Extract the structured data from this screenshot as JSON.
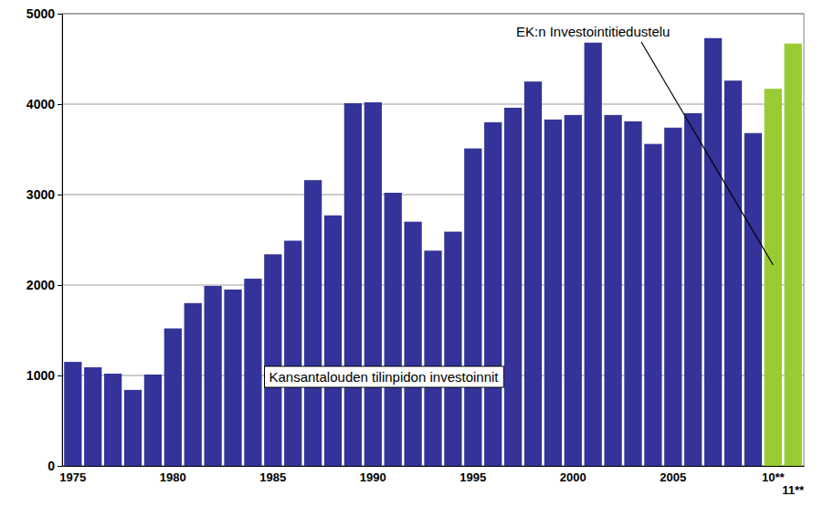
{
  "chart_data": {
    "type": "bar",
    "categories": [
      "1975",
      null,
      null,
      null,
      null,
      "1980",
      null,
      null,
      null,
      null,
      "1985",
      null,
      null,
      null,
      null,
      "1990",
      null,
      null,
      null,
      null,
      "1995",
      null,
      null,
      null,
      null,
      "2000",
      null,
      null,
      null,
      null,
      "2005",
      null,
      null,
      null,
      null,
      "10**",
      "11**"
    ],
    "values": [
      1150,
      1090,
      1020,
      840,
      1010,
      1520,
      1800,
      1990,
      1950,
      2070,
      2340,
      2490,
      3160,
      2770,
      4010,
      4020,
      3020,
      2700,
      2380,
      2590,
      3510,
      3800,
      3960,
      4250,
      3830,
      3880,
      4680,
      3880,
      3810,
      3560,
      3740,
      3900,
      4730,
      4260,
      3680,
      4170,
      4670
    ],
    "colors": [
      "#333399",
      "#333399",
      "#333399",
      "#333399",
      "#333399",
      "#333399",
      "#333399",
      "#333399",
      "#333399",
      "#333399",
      "#333399",
      "#333399",
      "#333399",
      "#333399",
      "#333399",
      "#333399",
      "#333399",
      "#333399",
      "#333399",
      "#333399",
      "#333399",
      "#333399",
      "#333399",
      "#333399",
      "#333399",
      "#333399",
      "#333399",
      "#333399",
      "#333399",
      "#333399",
      "#333399",
      "#333399",
      "#333399",
      "#333399",
      "#333399",
      "#99cc33",
      "#99cc33"
    ],
    "ylim": [
      0,
      5000
    ],
    "yticks": [
      0,
      1000,
      2000,
      3000,
      4000,
      5000
    ],
    "grid": true,
    "annotations": [
      "Kansantalouden tilinpidon investoinnit",
      "EK:n Investointitiedustelu"
    ]
  }
}
